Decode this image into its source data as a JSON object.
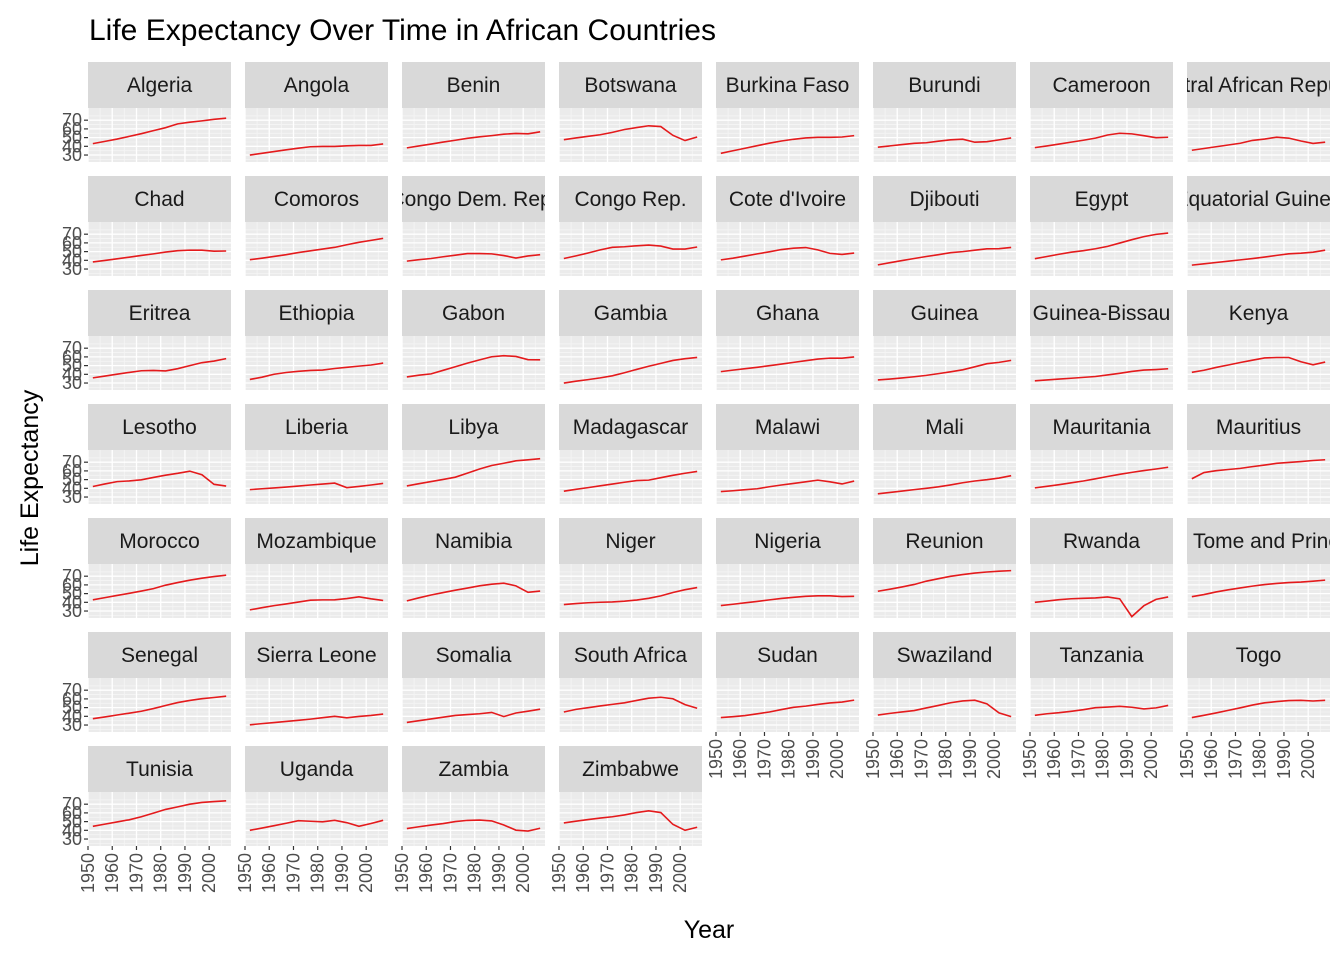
{
  "chart_data": {
    "type": "line",
    "title": "Life Expectancy Over Time in African Countries",
    "xlabel": "Year",
    "ylabel": "Life Expectancy",
    "x": [
      1952,
      1957,
      1962,
      1967,
      1972,
      1977,
      1982,
      1987,
      1992,
      1997,
      2002,
      2007
    ],
    "x_ticks": [
      "1950",
      "1960",
      "1970",
      "1980",
      "1990",
      "2000"
    ],
    "y_ticks": [
      "30",
      "40",
      "50",
      "60",
      "70"
    ],
    "xlim": [
      1950,
      2009
    ],
    "ylim": [
      22,
      84
    ],
    "line_color": "#e41a1c",
    "grid": true,
    "facets_per_row": 8,
    "series": [
      {
        "name": "Algeria",
        "values": [
          43.1,
          45.7,
          48.3,
          51.4,
          54.5,
          58.0,
          61.4,
          65.8,
          67.7,
          69.2,
          71.0,
          72.3
        ]
      },
      {
        "name": "Angola",
        "values": [
          30.0,
          32.0,
          34.0,
          36.0,
          37.9,
          39.5,
          39.9,
          39.9,
          40.6,
          41.0,
          41.0,
          42.7
        ]
      },
      {
        "name": "Benin",
        "values": [
          38.2,
          40.4,
          42.6,
          44.9,
          47.0,
          49.2,
          50.9,
          52.3,
          53.9,
          54.8,
          54.4,
          56.7
        ]
      },
      {
        "name": "Botswana",
        "values": [
          47.6,
          49.6,
          51.5,
          53.3,
          56.0,
          59.3,
          61.5,
          63.6,
          62.7,
          52.6,
          46.6,
          50.7
        ]
      },
      {
        "name": "Burkina Faso",
        "values": [
          32.0,
          34.9,
          37.8,
          40.7,
          43.6,
          46.1,
          48.1,
          49.6,
          50.3,
          50.3,
          50.7,
          52.3
        ]
      },
      {
        "name": "Burundi",
        "values": [
          39.0,
          40.5,
          42.0,
          43.5,
          44.1,
          45.9,
          47.5,
          48.2,
          44.7,
          45.3,
          47.4,
          49.6
        ]
      },
      {
        "name": "Cameroon",
        "values": [
          38.5,
          40.4,
          42.6,
          44.8,
          47.0,
          49.4,
          53.0,
          55.0,
          54.3,
          52.2,
          49.9,
          50.4
        ]
      },
      {
        "name": "Central African Republic",
        "values": [
          35.5,
          37.5,
          39.5,
          41.5,
          43.5,
          46.8,
          48.3,
          50.5,
          49.4,
          46.1,
          43.3,
          44.7
        ]
      },
      {
        "name": "Chad",
        "values": [
          38.1,
          39.9,
          41.7,
          43.6,
          45.6,
          47.4,
          49.5,
          51.1,
          51.7,
          51.6,
          50.5,
          50.7
        ]
      },
      {
        "name": "Comoros",
        "values": [
          40.7,
          42.5,
          44.5,
          46.5,
          48.9,
          50.9,
          52.9,
          54.9,
          57.9,
          60.7,
          62.9,
          65.2
        ]
      },
      {
        "name": "Congo Dem. Rep.",
        "values": [
          39.1,
          40.7,
          42.1,
          44.1,
          45.9,
          47.8,
          47.8,
          47.4,
          45.5,
          42.6,
          45.0,
          46.5
        ]
      },
      {
        "name": "Congo Rep.",
        "values": [
          42.1,
          45.1,
          48.4,
          52.0,
          54.9,
          55.6,
          56.7,
          57.5,
          56.4,
          52.96,
          52.97,
          55.3
        ]
      },
      {
        "name": "Cote d'Ivoire",
        "values": [
          40.5,
          42.5,
          44.9,
          47.4,
          49.8,
          52.4,
          53.98,
          54.7,
          52.0,
          47.99,
          46.8,
          48.3
        ]
      },
      {
        "name": "Djibouti",
        "values": [
          34.8,
          37.3,
          39.7,
          42.1,
          44.4,
          46.5,
          48.8,
          50.0,
          51.6,
          53.2,
          53.4,
          54.8
        ]
      },
      {
        "name": "Egypt",
        "values": [
          41.9,
          44.4,
          46.99,
          49.3,
          51.1,
          53.3,
          56.0,
          59.8,
          63.7,
          67.2,
          69.8,
          71.3
        ]
      },
      {
        "name": "Equatorial Guinea",
        "values": [
          34.5,
          35.98,
          37.5,
          38.99,
          40.5,
          42.0,
          43.7,
          45.7,
          47.5,
          48.2,
          49.3,
          51.6
        ]
      },
      {
        "name": "Eritrea",
        "values": [
          35.9,
          38.0,
          40.2,
          42.2,
          44.1,
          44.5,
          43.9,
          46.5,
          49.99,
          53.4,
          55.2,
          58.0
        ]
      },
      {
        "name": "Ethiopia",
        "values": [
          34.1,
          36.7,
          40.1,
          42.1,
          43.5,
          44.5,
          44.9,
          46.7,
          48.1,
          49.4,
          50.7,
          52.9
        ]
      },
      {
        "name": "Gabon",
        "values": [
          37.0,
          38.99,
          40.5,
          44.6,
          48.7,
          52.8,
          56.6,
          60.2,
          61.4,
          60.5,
          56.8,
          56.7
        ]
      },
      {
        "name": "Gambia",
        "values": [
          30.0,
          32.1,
          33.9,
          35.9,
          38.3,
          41.8,
          45.6,
          49.3,
          52.6,
          55.9,
          58.0,
          59.4
        ]
      },
      {
        "name": "Ghana",
        "values": [
          43.1,
          44.8,
          46.5,
          48.1,
          49.9,
          51.8,
          53.7,
          55.7,
          57.5,
          58.6,
          58.5,
          60.0
        ]
      },
      {
        "name": "Guinea",
        "values": [
          33.6,
          34.6,
          35.8,
          37.2,
          38.8,
          40.8,
          42.9,
          45.2,
          48.6,
          52.2,
          53.7,
          56.0
        ]
      },
      {
        "name": "Guinea-Bissau",
        "values": [
          32.5,
          33.5,
          34.5,
          35.5,
          36.5,
          37.5,
          39.3,
          41.2,
          43.3,
          44.9,
          45.5,
          46.4
        ]
      },
      {
        "name": "Kenya",
        "values": [
          42.3,
          44.7,
          47.9,
          50.7,
          53.6,
          56.2,
          58.8,
          59.3,
          59.3,
          54.4,
          50.99,
          54.1
        ]
      },
      {
        "name": "Lesotho",
        "values": [
          42.1,
          45.0,
          47.7,
          48.5,
          49.8,
          52.5,
          55.1,
          57.2,
          59.7,
          55.6,
          44.6,
          42.6
        ]
      },
      {
        "name": "Liberia",
        "values": [
          38.5,
          39.5,
          40.5,
          41.5,
          42.6,
          43.8,
          44.9,
          46.0,
          40.8,
          42.2,
          43.8,
          45.7
        ]
      },
      {
        "name": "Libya",
        "values": [
          42.7,
          45.3,
          47.8,
          50.2,
          52.8,
          57.4,
          62.2,
          66.2,
          68.8,
          71.6,
          72.7,
          74.0
        ]
      },
      {
        "name": "Madagascar",
        "values": [
          36.7,
          38.9,
          40.8,
          42.9,
          44.9,
          47.0,
          48.9,
          49.4,
          52.2,
          54.98,
          57.3,
          59.4
        ]
      },
      {
        "name": "Malawi",
        "values": [
          36.3,
          37.2,
          38.4,
          39.5,
          41.8,
          43.8,
          45.6,
          47.5,
          49.4,
          47.5,
          45.0,
          48.3
        ]
      },
      {
        "name": "Mali",
        "values": [
          33.7,
          35.3,
          36.9,
          38.5,
          40.0,
          41.7,
          43.9,
          46.4,
          48.4,
          49.9,
          51.8,
          54.5
        ]
      },
      {
        "name": "Mauritania",
        "values": [
          40.5,
          42.3,
          44.2,
          46.3,
          48.4,
          50.9,
          53.6,
          56.1,
          58.3,
          60.4,
          62.2,
          64.2
        ]
      },
      {
        "name": "Mauritius",
        "values": [
          50.99,
          58.1,
          60.2,
          61.6,
          62.9,
          64.9,
          66.7,
          68.7,
          69.7,
          70.7,
          71.95,
          72.8
        ]
      },
      {
        "name": "Morocco",
        "values": [
          42.9,
          45.4,
          47.9,
          50.3,
          52.9,
          55.7,
          59.7,
          62.7,
          65.4,
          67.7,
          69.6,
          71.2
        ]
      },
      {
        "name": "Mozambique",
        "values": [
          31.3,
          33.8,
          36.2,
          38.1,
          40.3,
          42.5,
          42.8,
          42.9,
          44.3,
          46.3,
          44.0,
          42.1
        ]
      },
      {
        "name": "Namibia",
        "values": [
          41.7,
          45.2,
          48.4,
          51.2,
          53.9,
          56.4,
          58.97,
          60.8,
          61.99,
          58.9,
          51.5,
          52.9
        ]
      },
      {
        "name": "Niger",
        "values": [
          37.4,
          38.6,
          39.5,
          40.1,
          40.5,
          41.3,
          42.6,
          44.6,
          47.4,
          51.3,
          54.5,
          56.9
        ]
      },
      {
        "name": "Nigeria",
        "values": [
          36.3,
          37.8,
          39.4,
          41.0,
          42.8,
          44.5,
          45.8,
          46.9,
          47.5,
          47.5,
          46.6,
          46.9
        ]
      },
      {
        "name": "Reunion",
        "values": [
          52.7,
          55.1,
          57.7,
          60.5,
          64.3,
          67.1,
          69.9,
          71.9,
          73.6,
          74.8,
          75.7,
          76.4
        ]
      },
      {
        "name": "Rwanda",
        "values": [
          40.0,
          41.5,
          43.0,
          44.1,
          44.6,
          45.0,
          46.2,
          44.0,
          23.6,
          36.1,
          43.4,
          46.2
        ]
      },
      {
        "name": "Sao Tome and Principe",
        "values": [
          46.5,
          48.9,
          51.9,
          54.4,
          56.5,
          58.6,
          60.4,
          61.7,
          62.7,
          63.3,
          64.3,
          65.5
        ]
      },
      {
        "name": "Senegal",
        "values": [
          37.3,
          39.3,
          41.5,
          43.6,
          45.8,
          48.9,
          52.4,
          55.8,
          58.2,
          60.2,
          61.6,
          63.1
        ]
      },
      {
        "name": "Sierra Leone",
        "values": [
          30.3,
          31.6,
          32.8,
          34.1,
          35.4,
          36.8,
          38.4,
          40.0,
          38.3,
          39.9,
          41.0,
          42.6
        ]
      },
      {
        "name": "Somalia",
        "values": [
          32.98,
          34.98,
          36.98,
          38.98,
          40.97,
          41.97,
          42.95,
          44.5,
          39.7,
          43.8,
          45.9,
          48.2
        ]
      },
      {
        "name": "South Africa",
        "values": [
          45.0,
          47.98,
          49.95,
          51.9,
          53.7,
          55.5,
          58.2,
          60.8,
          61.9,
          60.2,
          53.4,
          49.3
        ]
      },
      {
        "name": "Sudan",
        "values": [
          38.6,
          39.6,
          40.9,
          42.9,
          44.99,
          47.8,
          50.3,
          51.7,
          53.6,
          55.4,
          56.4,
          58.6
        ]
      },
      {
        "name": "Swaziland",
        "values": [
          41.4,
          43.4,
          44.99,
          46.6,
          49.6,
          52.5,
          55.6,
          57.7,
          58.5,
          54.3,
          43.9,
          39.6
        ]
      },
      {
        "name": "Tanzania",
        "values": [
          41.2,
          42.97,
          44.2,
          45.8,
          47.6,
          49.9,
          50.6,
          51.5,
          50.4,
          48.5,
          49.7,
          52.5
        ]
      },
      {
        "name": "Togo",
        "values": [
          38.6,
          41.2,
          43.9,
          46.8,
          49.8,
          52.9,
          55.5,
          56.9,
          58.1,
          58.4,
          57.6,
          58.4
        ]
      },
      {
        "name": "Tunisia",
        "values": [
          44.6,
          47.1,
          49.6,
          52.1,
          55.6,
          59.8,
          64.0,
          66.9,
          70.0,
          71.97,
          73.0,
          73.9
        ]
      },
      {
        "name": "Uganda",
        "values": [
          40.0,
          42.6,
          45.3,
          48.1,
          51.0,
          50.4,
          49.8,
          51.5,
          48.8,
          44.6,
          47.8,
          51.5
        ]
      },
      {
        "name": "Zambia",
        "values": [
          42.0,
          44.1,
          46.0,
          47.8,
          50.1,
          51.4,
          51.8,
          50.8,
          46.1,
          40.2,
          39.2,
          42.4
        ]
      },
      {
        "name": "Zimbabwe",
        "values": [
          48.5,
          50.5,
          52.4,
          54.1,
          55.6,
          57.7,
          60.4,
          62.4,
          60.4,
          46.8,
          39.99,
          43.5
        ]
      }
    ]
  }
}
